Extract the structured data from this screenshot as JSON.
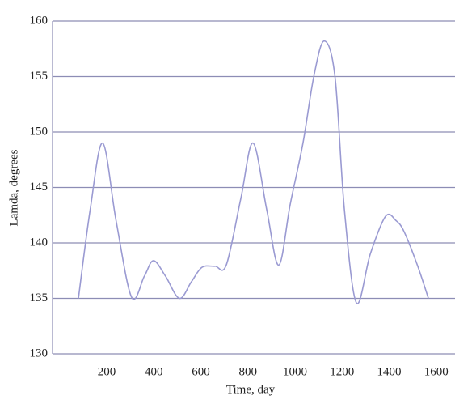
{
  "chart_data": {
    "type": "line",
    "x_label": "Time, day",
    "y_label": "Lamda, degrees",
    "x": [
      80,
      130,
      183,
      240,
      306,
      360,
      399,
      450,
      509,
      560,
      605,
      660,
      708,
      770,
      822,
      880,
      931,
      980,
      1034,
      1080,
      1124,
      1170,
      1210,
      1261,
      1320,
      1385,
      1430,
      1464,
      1520,
      1567
    ],
    "series": [
      {
        "name": "Lamda",
        "color": "#9a9ad2",
        "values": [
          135,
          143,
          149,
          142,
          135.1,
          137,
          138.4,
          137,
          135,
          136.5,
          137.8,
          137.9,
          138,
          144,
          149,
          143,
          138,
          143.5,
          149,
          155,
          158.2,
          155,
          143,
          134.6,
          139,
          142.4,
          142,
          141,
          138,
          135
        ]
      }
    ],
    "xlim": [
      -30,
      1680
    ],
    "xticks": [
      200,
      400,
      600,
      800,
      1000,
      1200,
      1400,
      1600
    ],
    "ylim": [
      130,
      160
    ],
    "yticks": [
      130,
      135,
      140,
      145,
      150,
      155,
      160
    ],
    "grid": true
  }
}
